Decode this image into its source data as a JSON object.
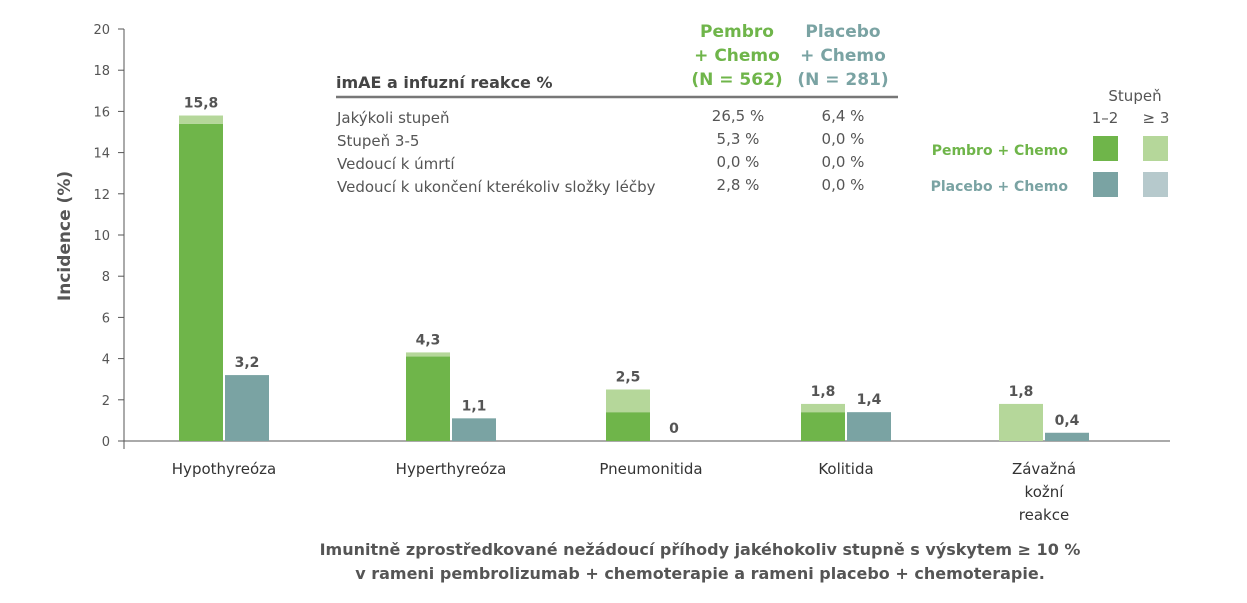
{
  "chart_data": {
    "type": "bar",
    "ylabel": "Incidence (%)",
    "ylim": [
      0,
      20
    ],
    "yticks": [
      0,
      2,
      4,
      6,
      8,
      10,
      12,
      14,
      16,
      18,
      20
    ],
    "categories": [
      "Hypothyreóza",
      "Hyperthyreóza",
      "Pneumonitida",
      "Kolitida",
      "Závažná kožní reakce"
    ],
    "category_lines": [
      [
        "Hypothyreóza"
      ],
      [
        "Hyperthyreóza"
      ],
      [
        "Pneumonitida"
      ],
      [
        "Kolitida"
      ],
      [
        "Závažná",
        "kožní",
        "reakce"
      ]
    ],
    "series": [
      {
        "name": "Pembro + Chemo",
        "grade_1_2": [
          15.4,
          4.1,
          1.4,
          1.4,
          0.0
        ],
        "grade_3_plus": [
          0.4,
          0.2,
          1.1,
          0.4,
          1.8
        ],
        "total_labels": [
          "15,8",
          "4,3",
          "2,5",
          "1,8",
          "1,8"
        ],
        "color_1_2": "#6fb54a",
        "color_3_plus": "#b5d79a"
      },
      {
        "name": "Placebo + Chemo",
        "grade_1_2": [
          3.2,
          1.1,
          0.0,
          1.4,
          0.4
        ],
        "grade_3_plus": [
          0.0,
          0.0,
          0.0,
          0.0,
          0.0
        ],
        "total_labels": [
          "3,2",
          "1,1",
          "0",
          "1,4",
          "0,4"
        ],
        "color_1_2": "#7aa3a3",
        "color_3_plus": "#b6c9cc"
      }
    ],
    "legend": {
      "title": "Stupeň",
      "col_1_2": "1–2",
      "col_3_plus": "≥ 3",
      "position": "right"
    },
    "grid": false
  },
  "table": {
    "title": "imAE a infuzní reakce %",
    "col1_header": [
      "Pembro",
      "+ Chemo",
      "(N = 562)"
    ],
    "col2_header": [
      "Placebo",
      "+ Chemo",
      "(N = 281)"
    ],
    "col1_color": "#6fb54a",
    "col2_color": "#7aa3a3",
    "rows": [
      {
        "label": "Jakýkoli stupeň",
        "v1": "26,5 %",
        "v2": "6,4 %"
      },
      {
        "label": "Stupeň 3-5",
        "v1": "5,3 %",
        "v2": "0,0 %"
      },
      {
        "label": "Vedoucí k úmrtí",
        "v1": "0,0 %",
        "v2": "0,0 %"
      },
      {
        "label": "Vedoucí k ukončení kterékoliv složky léčby",
        "v1": "2,8 %",
        "v2": "0,0 %"
      }
    ]
  },
  "caption": {
    "line1": "Imunitně zprostředkované nežádoucí příhody jakéhokoliv stupně s výskytem ≥ 10 %",
    "line2": "v rameni pembrolizumab + chemoterapie a rameni placebo + chemoterapie."
  }
}
